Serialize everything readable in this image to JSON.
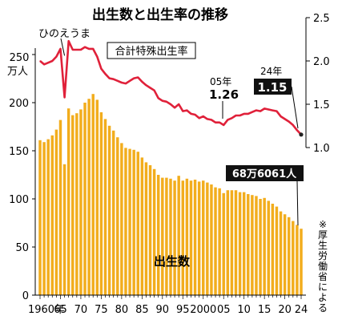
{
  "chart_data": {
    "type": "bar+line",
    "title": "出生数と出生率の推移",
    "left_axis": {
      "unit_label": [
        "250",
        "万人"
      ],
      "ticks": [
        "0",
        "50",
        "100",
        "150",
        "200"
      ],
      "range": [
        0,
        250
      ]
    },
    "right_axis": {
      "ticks": [
        "1.0",
        "1.5",
        "2.0",
        "2.5"
      ],
      "range": [
        1.0,
        2.5
      ]
    },
    "x_tick_labels": [
      "1960年",
      "65",
      "70",
      "75",
      "80",
      "85",
      "90",
      "95",
      "2000",
      "05",
      "10",
      "15",
      "20",
      "24"
    ],
    "years": [
      1960,
      1961,
      1962,
      1963,
      1964,
      1965,
      1966,
      1967,
      1968,
      1969,
      1970,
      1971,
      1972,
      1973,
      1974,
      1975,
      1976,
      1977,
      1978,
      1979,
      1980,
      1981,
      1982,
      1983,
      1984,
      1985,
      1986,
      1987,
      1988,
      1989,
      1990,
      1991,
      1992,
      1993,
      1994,
      1995,
      1996,
      1997,
      1998,
      1999,
      2000,
      2001,
      2002,
      2003,
      2004,
      2005,
      2006,
      2007,
      2008,
      2009,
      2010,
      2011,
      2012,
      2013,
      2014,
      2015,
      2016,
      2017,
      2018,
      2019,
      2020,
      2021,
      2022,
      2023,
      2024
    ],
    "series": [
      {
        "name": "出生数",
        "kind": "bar",
        "color": "#f2ad1d",
        "values": [
          161,
          159,
          162,
          166,
          172,
          182,
          136,
          194,
          187,
          189,
          193,
          200,
          204,
          209,
          203,
          190,
          183,
          176,
          171,
          164,
          158,
          153,
          152,
          151,
          149,
          143,
          138,
          135,
          131,
          125,
          122,
          122,
          121,
          119,
          124,
          119,
          121,
          119,
          120,
          118,
          119,
          117,
          115,
          112,
          111,
          106,
          109,
          109,
          109,
          107,
          107,
          105,
          104,
          103,
          100,
          101,
          98,
          95,
          92,
          87,
          84,
          81,
          77,
          73,
          69
        ]
      },
      {
        "name": "合計特殊出生率",
        "kind": "line",
        "color": "#e0213a",
        "values": [
          2.0,
          1.96,
          1.98,
          2.0,
          2.05,
          2.14,
          1.58,
          2.23,
          2.13,
          2.13,
          2.13,
          2.16,
          2.14,
          2.14,
          2.05,
          1.91,
          1.85,
          1.8,
          1.79,
          1.77,
          1.75,
          1.74,
          1.77,
          1.8,
          1.81,
          1.76,
          1.72,
          1.69,
          1.66,
          1.57,
          1.54,
          1.53,
          1.5,
          1.46,
          1.5,
          1.42,
          1.43,
          1.39,
          1.38,
          1.34,
          1.36,
          1.33,
          1.32,
          1.29,
          1.29,
          1.26,
          1.32,
          1.34,
          1.37,
          1.37,
          1.39,
          1.39,
          1.41,
          1.43,
          1.42,
          1.45,
          1.44,
          1.43,
          1.42,
          1.36,
          1.33,
          1.3,
          1.26,
          1.2,
          1.15
        ]
      }
    ],
    "annotations": {
      "hinoeuma": "ひのえうま",
      "rate_label": "合計特殊出生率",
      "births_label": "出生数",
      "y05_year": "05年",
      "y05_value": "1.26",
      "y24_year": "24年",
      "y24_value": "1.15",
      "births_2024": "68万6061人",
      "source": "※厚生労働省による"
    },
    "grid": false
  }
}
